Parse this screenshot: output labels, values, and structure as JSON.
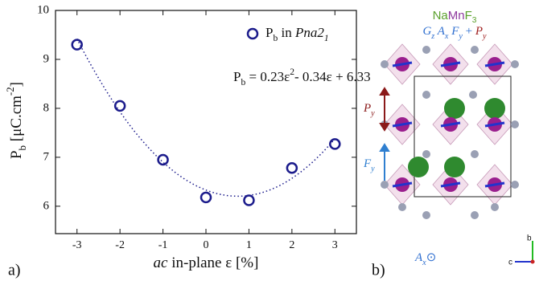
{
  "chart_data": {
    "type": "scatter",
    "x": [
      -3,
      -2,
      -1,
      0,
      1,
      2,
      3
    ],
    "series": [
      {
        "name": [
          {
            "text": "P"
          },
          {
            "text": "b",
            "sub": true
          },
          {
            "text": " in "
          },
          {
            "text": "Pna2",
            "italic": true
          },
          {
            "text": "1",
            "sub": true,
            "italic": true
          }
        ],
        "color": "#1c1c8c",
        "values": [
          9.3,
          8.05,
          6.95,
          6.18,
          6.12,
          6.78,
          7.27
        ]
      }
    ],
    "fit": {
      "coefficients": [
        0.23,
        -0.34,
        6.33
      ],
      "style": "dotted"
    },
    "annotation": [
      {
        "text": "P"
      },
      {
        "text": "b",
        "sub": true
      },
      {
        "text": " = 0.23ε"
      },
      {
        "text": "2",
        "sup": true
      },
      {
        "text": "- 0.34ε + 6.33"
      }
    ],
    "x_label": [
      {
        "text": "ac",
        "italic": true
      },
      {
        "text": " in-plane ε [%]"
      }
    ],
    "y_label": [
      {
        "text": "P"
      },
      {
        "text": "b",
        "sub": true
      },
      {
        "text": " [μC.cm"
      },
      {
        "text": "-2",
        "sup": true
      },
      {
        "text": "]"
      }
    ],
    "xlim": [
      -3.5,
      3.5
    ],
    "xticks": [
      -3,
      -2,
      -1,
      0,
      1,
      2,
      3
    ],
    "ylim": [
      5.44,
      10
    ],
    "yticks": [
      6,
      7,
      8,
      9,
      10
    ],
    "legend": "upper right"
  },
  "panel_labels": [
    "a)",
    "b)"
  ],
  "structure": {
    "formula": [
      {
        "text": "Na",
        "color": "#5aa02c"
      },
      {
        "text": "Mn",
        "color": "#8e3a9e"
      },
      {
        "text": "F",
        "color": "#5aa02c"
      },
      {
        "text": "3",
        "sub": true,
        "color": "#5aa02c"
      }
    ],
    "order_parameters": [
      {
        "text": "G",
        "italic": true,
        "color": "#2f6fd0"
      },
      {
        "text": "z",
        "sub": true,
        "italic": true,
        "color": "#2f6fd0"
      },
      {
        "text": " A",
        "italic": true,
        "color": "#2f6fd0"
      },
      {
        "text": "x",
        "sub": true,
        "italic": true,
        "color": "#2f6fd0"
      },
      {
        "text": " F",
        "italic": true,
        "color": "#2f6fd0"
      },
      {
        "text": "y",
        "sub": true,
        "italic": true,
        "color": "#2f6fd0"
      },
      {
        "text": " + ",
        "color": "#2f6fd0"
      },
      {
        "text": "P",
        "italic": true,
        "color": "#a02020"
      },
      {
        "text": "y",
        "sub": true,
        "italic": true,
        "color": "#a02020"
      }
    ],
    "polar_label": [
      {
        "text": "P",
        "italic": true,
        "color": "#8b1a1a"
      },
      {
        "text": "y",
        "sub": true,
        "italic": true,
        "color": "#8b1a1a"
      }
    ],
    "ferro_label": [
      {
        "text": "F",
        "italic": true,
        "color": "#2f7fd0"
      },
      {
        "text": "y",
        "sub": true,
        "italic": true,
        "color": "#2f7fd0"
      }
    ],
    "antiferro_label": [
      {
        "text": "A",
        "italic": true,
        "color": "#2f6fd0"
      },
      {
        "text": "x",
        "sub": true,
        "italic": true,
        "color": "#2f6fd0"
      },
      {
        "text": "⊙",
        "color": "#2f6fd0"
      }
    ],
    "axis_labels": [
      "b",
      "c"
    ]
  }
}
